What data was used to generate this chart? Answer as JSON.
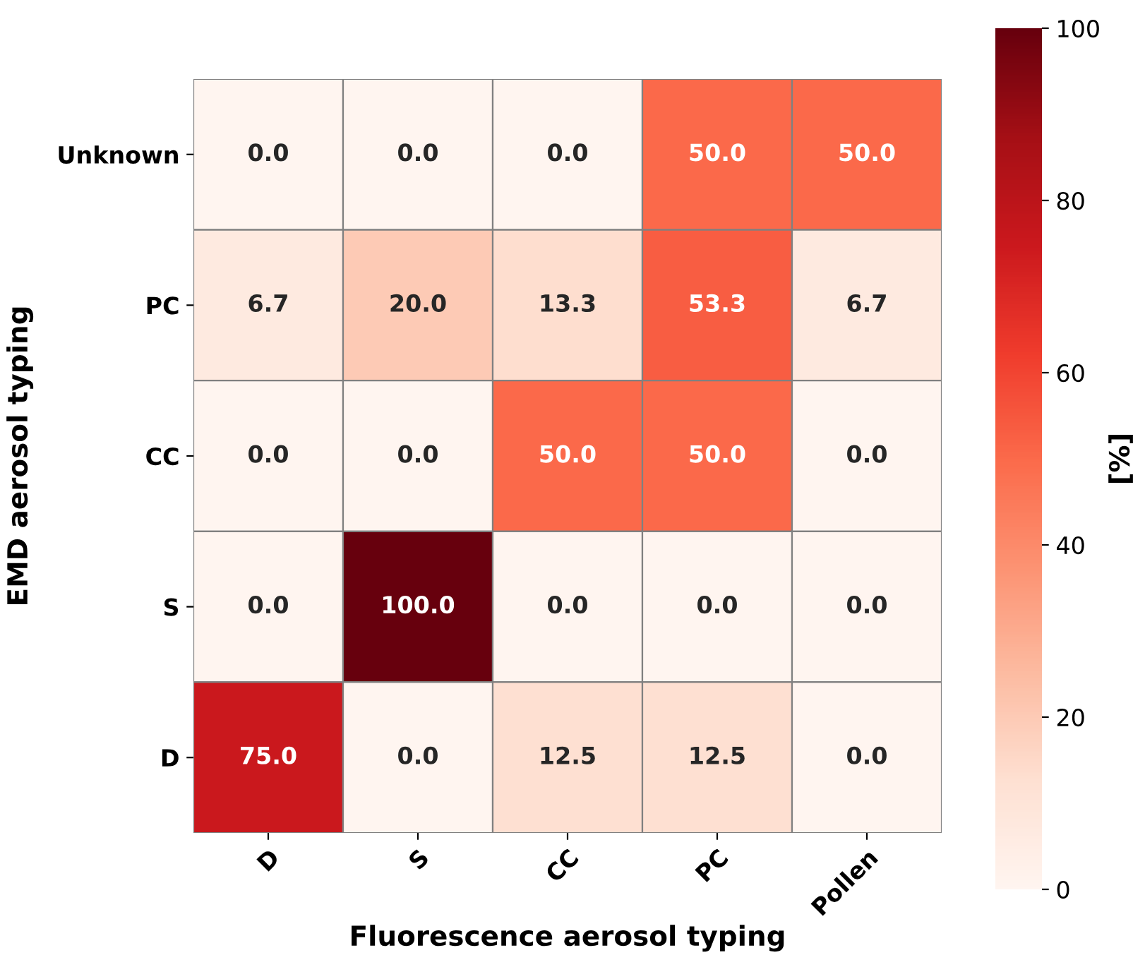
{
  "chart_data": {
    "type": "heatmap",
    "xlabel": "Fluorescence aerosol typing",
    "ylabel": "EMD aerosol typing",
    "clabel": "[%]",
    "categories": [
      "D",
      "S",
      "CC",
      "PC",
      "Pollen"
    ],
    "y_categories": [
      "Unknown",
      "PC",
      "CC",
      "S",
      "D"
    ],
    "cells": [
      [
        0.0,
        0.0,
        0.0,
        50.0,
        50.0
      ],
      [
        6.7,
        20.0,
        13.3,
        53.3,
        6.7
      ],
      [
        0.0,
        0.0,
        50.0,
        50.0,
        0.0
      ],
      [
        0.0,
        100.0,
        0.0,
        0.0,
        0.0
      ],
      [
        75.0,
        0.0,
        12.5,
        12.5,
        0.0
      ]
    ],
    "cell_labels": [
      [
        "0.0",
        "0.0",
        "0.0",
        "50.0",
        "50.0"
      ],
      [
        "6.7",
        "20.0",
        "13.3",
        "53.3",
        "6.7"
      ],
      [
        "0.0",
        "0.0",
        "50.0",
        "50.0",
        "0.0"
      ],
      [
        "0.0",
        "100.0",
        "0.0",
        "0.0",
        "0.0"
      ],
      [
        "75.0",
        "0.0",
        "12.5",
        "12.5",
        "0.0"
      ]
    ],
    "clim": [
      0,
      100
    ],
    "cticks": [
      0,
      20,
      40,
      60,
      80,
      100
    ]
  }
}
